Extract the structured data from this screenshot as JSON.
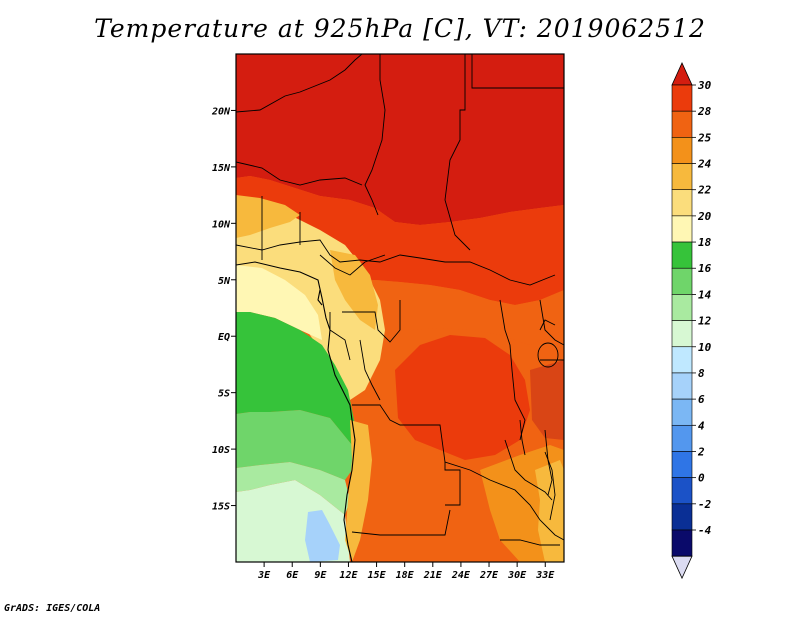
{
  "title": "Temperature at 925hPa [C], VT: 2019062512",
  "credit": "GrADS: IGES/COLA",
  "map": {
    "variable": "Temperature",
    "level": "925hPa",
    "units": "C",
    "valid_time": "2019062512",
    "region": "Central Africa",
    "lat_range": [
      -20,
      25
    ],
    "lon_range": [
      0,
      35
    ]
  },
  "lat_ticks": [
    {
      "lat": 20,
      "label": "20N"
    },
    {
      "lat": 15,
      "label": "15N"
    },
    {
      "lat": 10,
      "label": "10N"
    },
    {
      "lat": 5,
      "label": "5N"
    },
    {
      "lat": 0,
      "label": "EQ"
    },
    {
      "lat": -5,
      "label": "5S"
    },
    {
      "lat": -10,
      "label": "10S"
    },
    {
      "lat": -15,
      "label": "15S"
    }
  ],
  "lon_ticks": [
    {
      "lon": 3,
      "label": "3E"
    },
    {
      "lon": 6,
      "label": "6E"
    },
    {
      "lon": 9,
      "label": "9E"
    },
    {
      "lon": 12,
      "label": "12E"
    },
    {
      "lon": 15,
      "label": "15E"
    },
    {
      "lon": 18,
      "label": "18E"
    },
    {
      "lon": 21,
      "label": "21E"
    },
    {
      "lon": 24,
      "label": "24E"
    },
    {
      "lon": 27,
      "label": "27E"
    },
    {
      "lon": 30,
      "label": "30E"
    },
    {
      "lon": 33,
      "label": "33E"
    }
  ],
  "colorbar": {
    "labels": [
      "30",
      "28",
      "25",
      "24",
      "22",
      "20",
      "18",
      "16",
      "14",
      "12",
      "10",
      "8",
      "6",
      "4",
      "2",
      "0",
      "-2",
      "-4"
    ],
    "colors": [
      "#d41d10",
      "#eb3b0c",
      "#f06312",
      "#f3911a",
      "#f7b93d",
      "#fbdd7c",
      "#fff7b4",
      "#36c33a",
      "#6fd56a",
      "#a9eaa0",
      "#d7f8d3",
      "#bfe8ff",
      "#a6d2fa",
      "#7bb7f4",
      "#5397ee",
      "#2f75e6",
      "#1b52c7",
      "#0a2f95",
      "#0a0a6a"
    ],
    "over_color": "#d41d10",
    "under_color": "#dcdcf2"
  }
}
